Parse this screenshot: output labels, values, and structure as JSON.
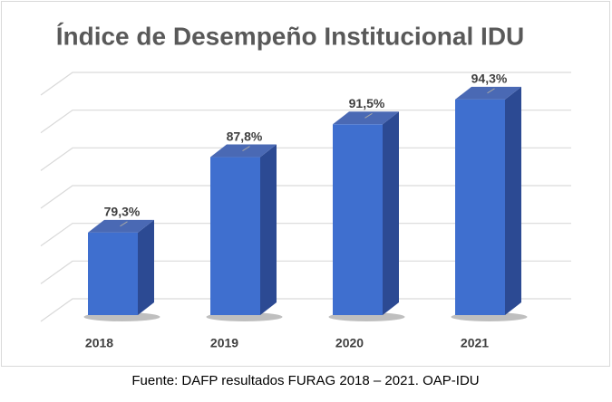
{
  "chart_data": {
    "type": "bar3d",
    "title": "Índice de Desempeño Institucional IDU",
    "categories": [
      "2018",
      "2019",
      "2020",
      "2021"
    ],
    "values": [
      79.3,
      87.8,
      91.5,
      94.3
    ],
    "value_labels": [
      "79,3%",
      "87,8%",
      "91,5%",
      "94,3%"
    ],
    "color": "#3f6fcf",
    "ylim": [
      70,
      100
    ],
    "yticks": [
      70,
      75,
      80,
      85,
      90,
      95,
      100
    ],
    "grid": true,
    "source": "Fuente: DAFP resultados FURAG 2018 – 2021. OAP-IDU"
  }
}
